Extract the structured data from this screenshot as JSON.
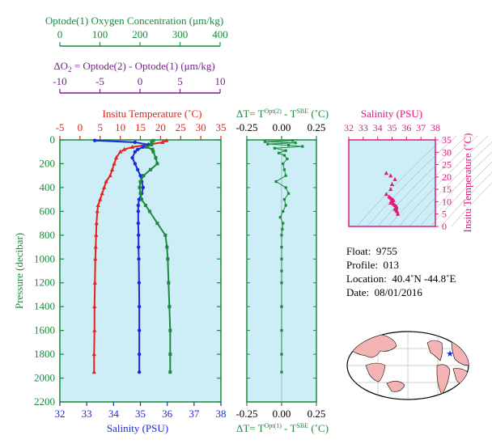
{
  "header": {
    "oxygen_axis": {
      "title": "Optode(1) Oxygen Concentration (μm/kg)",
      "ticks": [
        "0",
        "100",
        "200",
        "300",
        "400"
      ],
      "color": "#1a8a3c"
    },
    "delta_o2_axis": {
      "title_prefix": "ΔO",
      "title_sub": "2",
      "title_rest": " = Optode(2) - Optode(1)   (μm/kg)",
      "ticks": [
        "-10",
        "-5",
        "0",
        "5",
        "10"
      ],
      "color": "#7a1f8f"
    }
  },
  "panel_main": {
    "temp_title": "Insitu Temperature (˚C)",
    "temp_ticks": [
      "-5",
      "0",
      "5",
      "10",
      "15",
      "20",
      "25",
      "30",
      "35"
    ],
    "pressure_label": "Pressure (decibar)",
    "pressure_ticks": [
      "0",
      "200",
      "400",
      "600",
      "800",
      "1000",
      "1200",
      "1400",
      "1600",
      "1800",
      "2000",
      "2200"
    ],
    "salinity_label": "Salinity (PSU)",
    "salinity_ticks": [
      "32",
      "33",
      "34",
      "35",
      "36",
      "37",
      "38"
    ]
  },
  "panel_delta_t": {
    "top_title": "ΔT= T^Opt(2) - T^SBE (˚C)",
    "top_title_parts": [
      "ΔT= T",
      "Opt(2)",
      " - T",
      "SBE",
      " (˚C)"
    ],
    "bottom_title_parts": [
      "ΔT= T",
      "Opt(1)",
      " - T",
      "SBE",
      " (˚C)"
    ],
    "ticks": [
      "-0.25",
      "0.00",
      "0.25"
    ]
  },
  "panel_ts": {
    "salinity_title": "Salinity (PSU)",
    "salinity_ticks": [
      "32",
      "33",
      "34",
      "35",
      "36",
      "37",
      "38"
    ],
    "temp_label": "Insitu Temperature (˚C)",
    "temp_ticks": [
      "0",
      "5",
      "10",
      "15",
      "20",
      "25",
      "30",
      "35"
    ]
  },
  "info": {
    "float_label": "Float:",
    "float_value": "9755",
    "profile_label": "Profile:",
    "profile_value": "013",
    "location_label": "Location:",
    "location_value": "40.4˚N  -44.8˚E",
    "date_label": "Date:",
    "date_value": "08/01/2016"
  },
  "colors": {
    "temperature": "#e8201c",
    "salinity": "#1a2bd6",
    "oxygen": "#1a8a3c",
    "delta": "#7a1f8f",
    "ts": "#e0187a",
    "panel_bg": "#cdeef7"
  },
  "chart_data": [
    {
      "type": "line",
      "name": "profile-plot",
      "ylabel": "Pressure (decibar)",
      "ylim": [
        2200,
        0
      ],
      "series": [
        {
          "name": "Insitu Temperature (˚C)",
          "xlim": [
            -5,
            35
          ],
          "pressure": [
            5,
            20,
            40,
            60,
            80,
            100,
            150,
            200,
            250,
            300,
            350,
            400,
            450,
            500,
            550,
            600,
            700,
            800,
            900,
            1000,
            1200,
            1400,
            1600,
            1800,
            1950
          ],
          "values": [
            21.5,
            20.5,
            17,
            13,
            11,
            10,
            9,
            8.5,
            8,
            7.5,
            6.5,
            6,
            5.5,
            5,
            4.5,
            4.3,
            4.1,
            4,
            3.9,
            3.8,
            3.7,
            3.6,
            3.6,
            3.5,
            3.5
          ]
        },
        {
          "name": "Salinity (PSU)",
          "xlim": [
            32,
            38
          ],
          "pressure": [
            5,
            20,
            40,
            60,
            80,
            100,
            150,
            200,
            250,
            300,
            350,
            400,
            450,
            500,
            550,
            600,
            700,
            800,
            900,
            1000,
            1200,
            1400,
            1600,
            1800,
            1950
          ],
          "values": [
            33.3,
            34.8,
            35.3,
            35.1,
            34.9,
            34.8,
            34.7,
            34.8,
            34.9,
            35.0,
            35.05,
            35.1,
            35.05,
            34.95,
            34.92,
            34.92,
            34.92,
            34.93,
            34.93,
            34.94,
            34.95,
            34.96,
            34.96,
            34.96,
            34.96
          ]
        },
        {
          "name": "Optode(1) Oxygen Concentration (μm/kg)",
          "xlim": [
            0,
            400
          ],
          "pressure": [
            5,
            20,
            40,
            60,
            80,
            100,
            150,
            200,
            250,
            300,
            350,
            400,
            450,
            500,
            550,
            600,
            700,
            800,
            900,
            1000,
            1200,
            1400,
            1600,
            1800,
            1950
          ],
          "values": [
            232,
            228,
            228,
            215,
            230,
            232,
            238,
            242,
            225,
            208,
            200,
            198,
            200,
            203,
            213,
            223,
            242,
            262,
            266,
            268,
            270,
            272,
            274,
            274,
            274
          ]
        }
      ]
    },
    {
      "type": "scatter",
      "name": "delta-t-plot",
      "xlim": [
        -0.25,
        0.25
      ],
      "ylim": [
        2200,
        0
      ],
      "pressure": [
        5,
        15,
        25,
        35,
        45,
        55,
        70,
        90,
        110,
        130,
        160,
        200,
        250,
        300,
        350,
        400,
        450,
        500,
        550,
        600,
        650,
        700,
        750,
        800,
        900,
        1000,
        1100,
        1200,
        1400,
        1600,
        1800,
        1950
      ],
      "values": [
        0.08,
        -0.12,
        0.1,
        -0.1,
        0.05,
        0.15,
        -0.05,
        0.03,
        -0.02,
        0.02,
        0.04,
        0.01,
        0.02,
        0.03,
        -0.04,
        0.03,
        0.05,
        0.02,
        0.03,
        0.01,
        -0.01,
        0.01,
        0.005,
        0.0,
        0.0,
        0.0,
        0.0,
        0.0,
        0.0,
        0.0,
        0.0,
        0.0
      ]
    },
    {
      "type": "scatter",
      "name": "ts-plot",
      "xlabel": "Salinity (PSU)",
      "ylabel": "Insitu Temperature (˚C)",
      "xlim": [
        32,
        38
      ],
      "ylim": [
        0,
        35
      ],
      "x": [
        34.6,
        34.9,
        35.2,
        35.0,
        34.9,
        34.6,
        34.8,
        34.9,
        35.0,
        35.1,
        35.0,
        34.9,
        35.1,
        35.2,
        35.3,
        35.3,
        35.2,
        35.3,
        35.35,
        35.4
      ],
      "y": [
        21.5,
        20.5,
        19,
        17,
        15,
        13,
        12,
        11.5,
        11,
        10.5,
        10,
        9.5,
        9,
        8.5,
        8,
        7.5,
        7,
        6.5,
        6,
        5
      ]
    }
  ]
}
